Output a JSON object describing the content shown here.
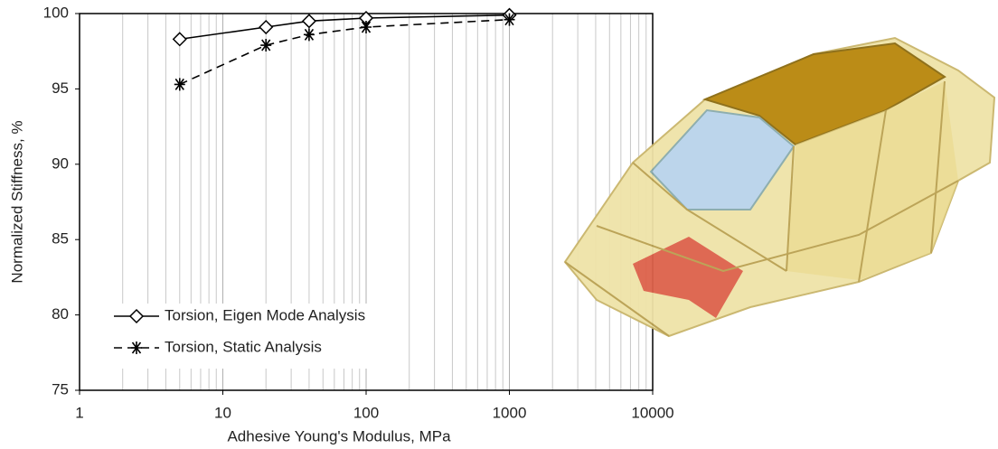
{
  "chart_data": {
    "type": "line",
    "x_label": "Adhesive Young's Modulus, MPa",
    "y_label": "Normalized Stiffness, %",
    "xscale": "log",
    "xlim": [
      1,
      10000
    ],
    "xticks": [
      1,
      10,
      100,
      1000,
      10000
    ],
    "xminorticks": [
      2,
      3,
      4,
      5,
      6,
      7,
      8,
      9,
      20,
      30,
      40,
      50,
      60,
      70,
      80,
      90,
      200,
      300,
      400,
      500,
      600,
      700,
      800,
      900,
      2000,
      3000,
      4000,
      5000,
      6000,
      7000,
      8000,
      9000
    ],
    "ylim": [
      75,
      100
    ],
    "yticks": [
      75,
      80,
      85,
      90,
      95,
      100
    ],
    "grid": "x",
    "legend": "lower left",
    "series": [
      {
        "name": "Torsion, Eigen Mode Analysis",
        "color": "#000000",
        "marker": "diamond",
        "dash": "solid",
        "x": [
          5,
          20,
          40,
          100,
          1000
        ],
        "values": [
          98.3,
          99.1,
          99.5,
          99.7,
          99.9
        ]
      },
      {
        "name": "Torsion, Static Analysis",
        "color": "#000000",
        "marker": "asterisk",
        "dash": "dashed",
        "x": [
          5,
          20,
          40,
          100,
          1000
        ],
        "values": [
          95.3,
          97.9,
          98.6,
          99.1,
          99.6
        ]
      }
    ]
  }
}
